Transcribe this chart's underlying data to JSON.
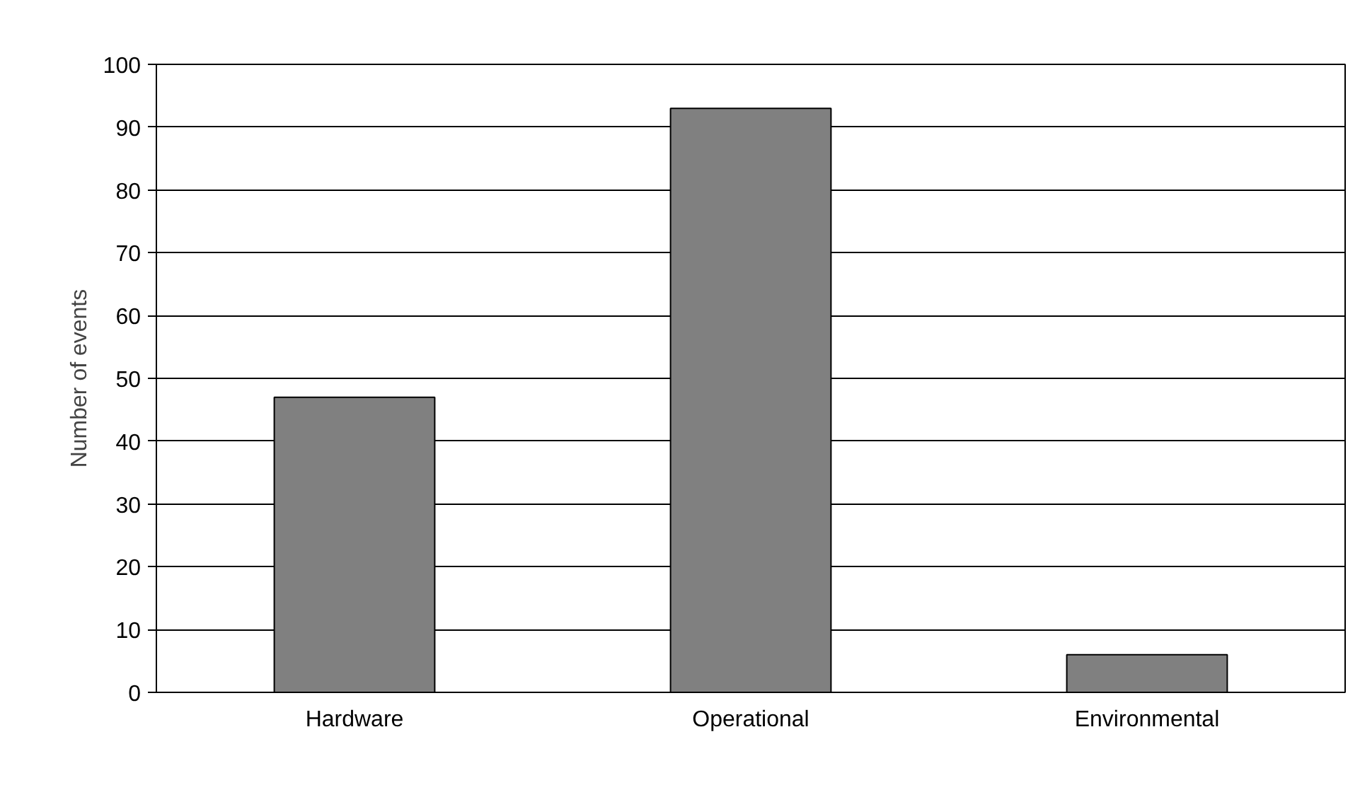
{
  "chart_data": {
    "type": "bar",
    "ylabel": "Number of events",
    "categories": [
      "Hardware",
      "Operational",
      "Environmental"
    ],
    "values": [
      47,
      93,
      6
    ],
    "color": "#808080",
    "ylim": [
      0,
      100
    ],
    "yticks": [
      0,
      10,
      20,
      30,
      40,
      50,
      60,
      70,
      80,
      90,
      100
    ],
    "grid": "y"
  }
}
